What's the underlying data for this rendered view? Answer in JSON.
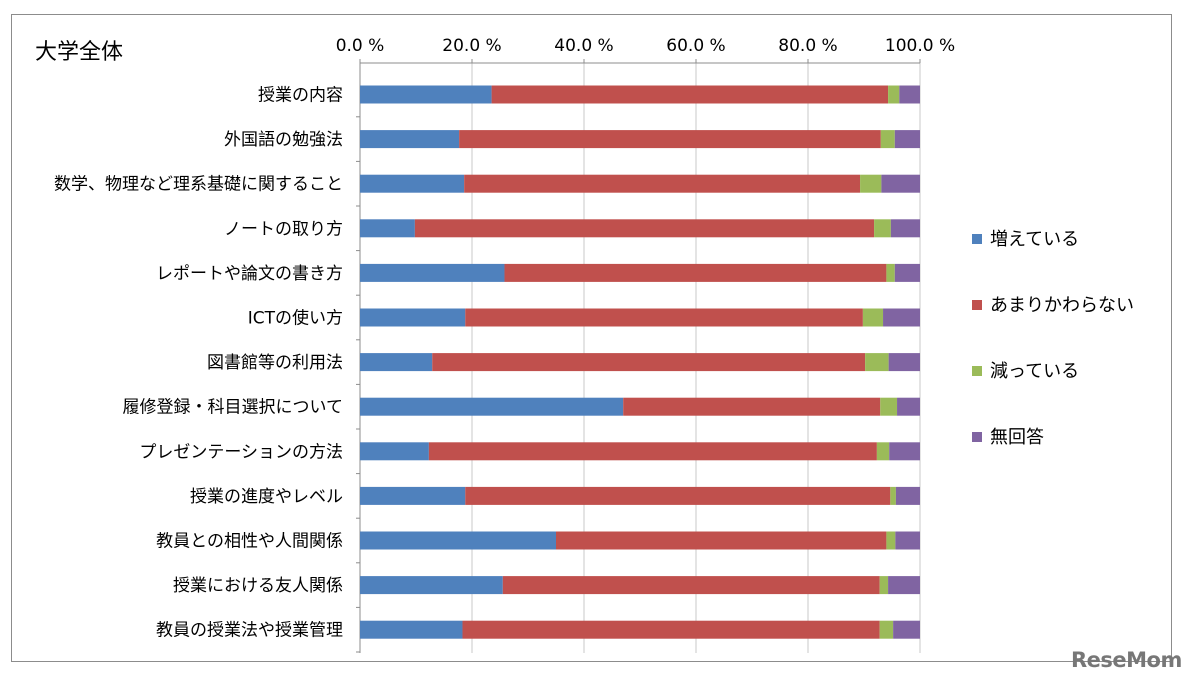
{
  "chart_data": {
    "type": "bar",
    "orientation": "horizontal",
    "stacked": "percent",
    "title": "大学全体",
    "categories": [
      "授業の内容",
      "外国語の勉強法",
      "数学、物理など理系基礎に関すること",
      "ノートの取り方",
      "レポートや論文の書き方",
      "ICTの使い方",
      "図書館等の利用法",
      "履修登録・科目選択について",
      "プレゼンテーションの方法",
      "授業の進度やレベル",
      "教員との相性や人間関係",
      "授業における友人関係",
      "教員の授業法や授業管理"
    ],
    "series": [
      {
        "name": "増えている",
        "color": "#4f81bd",
        "values": [
          23.5,
          17.7,
          18.6,
          9.8,
          25.8,
          18.8,
          12.9,
          47.0,
          12.3,
          18.8,
          35.0,
          25.5,
          18.3
        ]
      },
      {
        "name": "あまりかわらない",
        "color": "#c0504d",
        "values": [
          70.8,
          75.3,
          70.7,
          82.0,
          68.2,
          71.0,
          77.3,
          45.9,
          80.0,
          75.9,
          59.0,
          67.3,
          74.5
        ]
      },
      {
        "name": "減っている",
        "color": "#9bbb59",
        "values": [
          2.0,
          2.5,
          3.8,
          3.0,
          1.5,
          3.6,
          4.2,
          3.0,
          2.2,
          1.0,
          1.6,
          1.5,
          2.4
        ]
      },
      {
        "name": "無回答",
        "color": "#8064a2",
        "values": [
          3.7,
          4.5,
          6.9,
          5.2,
          4.5,
          6.6,
          5.6,
          4.1,
          5.5,
          4.3,
          4.4,
          5.7,
          4.8
        ]
      }
    ],
    "xaxis": {
      "ticks": [
        "0.0 %",
        "20.0 %",
        "40.0 %",
        "60.0 %",
        "80.0 %",
        "100.0 %"
      ],
      "position": "top",
      "range": [
        0,
        100
      ]
    },
    "grid": true,
    "legend_position": "right"
  },
  "watermark": "ReseMom"
}
